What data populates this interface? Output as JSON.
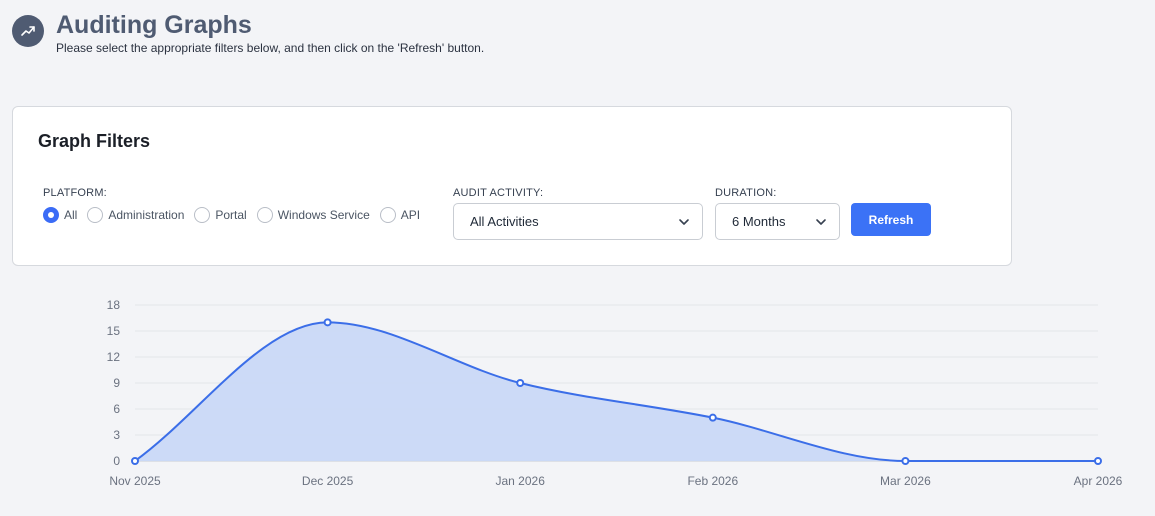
{
  "header": {
    "icon": "trending-up-icon",
    "title": "Auditing Graphs",
    "subtitle": "Please select the appropriate filters below, and then click on the 'Refresh' button."
  },
  "filters": {
    "title": "Graph Filters",
    "platform": {
      "label": "PLATFORM:",
      "options": [
        {
          "label": "All",
          "checked": true
        },
        {
          "label": "Administration",
          "checked": false
        },
        {
          "label": "Portal",
          "checked": false
        },
        {
          "label": "Windows Service",
          "checked": false
        },
        {
          "label": "API",
          "checked": false
        }
      ]
    },
    "audit_activity": {
      "label": "AUDIT ACTIVITY:",
      "value": "All Activities"
    },
    "duration": {
      "label": "DURATION:",
      "value": "6 Months"
    },
    "refresh_label": "Refresh"
  },
  "colors": {
    "accent": "#3b72f6",
    "line": "#3b6ee8",
    "area": "#c9d8f7"
  },
  "chart_data": {
    "type": "area",
    "categories": [
      "Nov 2025",
      "Dec 2025",
      "Jan 2026",
      "Feb 2026",
      "Mar 2026",
      "Apr 2026"
    ],
    "values": [
      0,
      16,
      9,
      5,
      0,
      0
    ],
    "yticks": [
      0,
      3,
      6,
      9,
      12,
      15,
      18
    ],
    "ylim": [
      0,
      18
    ],
    "grid": true,
    "smooth": true
  }
}
